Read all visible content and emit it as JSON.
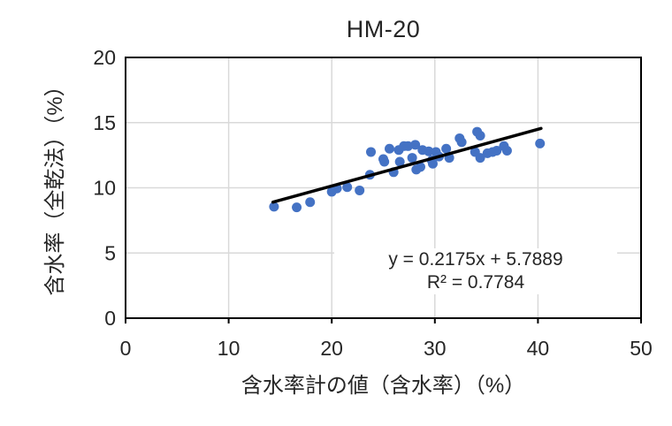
{
  "chart_data": {
    "type": "scatter",
    "title": "HM-20",
    "xlabel": "含水率計の値（含水率）（%）",
    "ylabel": "含水率（全乾法）（%）",
    "xlim": [
      0,
      50
    ],
    "ylim": [
      0,
      20
    ],
    "xticks": [
      0,
      10,
      20,
      30,
      40,
      50
    ],
    "yticks": [
      0,
      5,
      10,
      15,
      20
    ],
    "grid": true,
    "legend": "none",
    "series": [
      {
        "name": "HM-20",
        "marker_color": "#4472C4",
        "marker_radius": 5.5,
        "points": [
          [
            14.4,
            8.55
          ],
          [
            16.6,
            8.5
          ],
          [
            17.9,
            8.9
          ],
          [
            20.0,
            9.7
          ],
          [
            20.5,
            9.95
          ],
          [
            21.5,
            10.05
          ],
          [
            22.7,
            9.8
          ],
          [
            23.7,
            11.0
          ],
          [
            23.8,
            12.75
          ],
          [
            25.0,
            12.2
          ],
          [
            25.1,
            12.0
          ],
          [
            25.6,
            13.0
          ],
          [
            26.0,
            11.2
          ],
          [
            26.5,
            12.9
          ],
          [
            26.6,
            12.0
          ],
          [
            27.0,
            13.2
          ],
          [
            27.4,
            13.2
          ],
          [
            27.8,
            12.3
          ],
          [
            28.1,
            13.3
          ],
          [
            28.2,
            11.4
          ],
          [
            28.6,
            11.6
          ],
          [
            28.8,
            12.9
          ],
          [
            29.4,
            12.8
          ],
          [
            29.7,
            12.1
          ],
          [
            29.8,
            11.85
          ],
          [
            30.1,
            12.75
          ],
          [
            30.4,
            12.4
          ],
          [
            31.1,
            13.0
          ],
          [
            31.4,
            12.3
          ],
          [
            32.4,
            13.8
          ],
          [
            32.6,
            13.5
          ],
          [
            33.9,
            12.75
          ],
          [
            34.1,
            14.3
          ],
          [
            34.4,
            14.0
          ],
          [
            34.4,
            12.3
          ],
          [
            35.1,
            12.65
          ],
          [
            35.6,
            12.75
          ],
          [
            36.0,
            12.85
          ],
          [
            36.7,
            13.2
          ],
          [
            37.0,
            12.85
          ],
          [
            40.2,
            13.4
          ]
        ]
      }
    ],
    "trendline": {
      "equation": "y = 0.2175x + 5.7889",
      "r_squared": "R² = 0.7784",
      "slope": 0.2175,
      "intercept": 5.7889,
      "x_start": 14.3,
      "x_end": 40.3,
      "color": "#000000"
    },
    "colors": {
      "gridline": "#D9D9D9",
      "axis_line": "#000000",
      "text": "#262626",
      "background": "#FFFFFF"
    }
  }
}
